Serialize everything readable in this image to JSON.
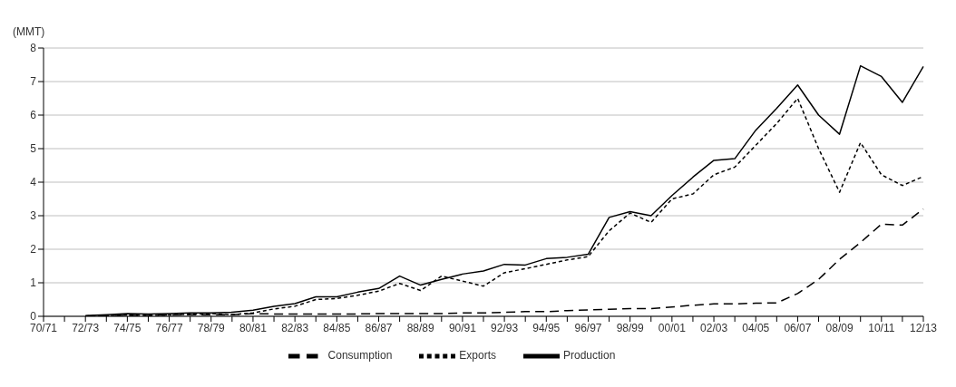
{
  "chart_data": {
    "type": "line",
    "ylabel": "(MMT)",
    "categories": [
      "70/71",
      null,
      "72/73",
      null,
      "74/75",
      null,
      "76/77",
      null,
      "78/79",
      null,
      "80/81",
      null,
      "82/83",
      null,
      "84/85",
      null,
      "86/87",
      null,
      "88/89",
      null,
      "90/91",
      null,
      "92/93",
      null,
      "94/95",
      null,
      "96/97",
      null,
      "98/99",
      null,
      "00/01",
      null,
      "02/03",
      null,
      "04/05",
      null,
      "06/07",
      null,
      "08/09",
      null,
      "10/11",
      null,
      "12/13"
    ],
    "series": [
      {
        "name": "Production",
        "color": "#000000",
        "line_style": "solid",
        "values": [
          null,
          null,
          0.02,
          0.05,
          0.08,
          0.07,
          0.08,
          0.1,
          0.1,
          0.12,
          0.18,
          0.3,
          0.38,
          0.58,
          0.58,
          0.72,
          0.83,
          1.2,
          0.93,
          1.1,
          1.26,
          1.35,
          1.55,
          1.53,
          1.72,
          1.76,
          1.85,
          2.95,
          3.12,
          3.0,
          3.6,
          4.15,
          4.65,
          4.7,
          5.55,
          6.2,
          6.9,
          6.0,
          5.43,
          7.47,
          7.15,
          6.38,
          7.45
        ]
      },
      {
        "name": "Consumption",
        "color": "#000000",
        "line_style": "dashed",
        "values": [
          null,
          null,
          0.01,
          0.02,
          0.03,
          0.03,
          0.04,
          0.05,
          0.05,
          0.05,
          0.08,
          0.07,
          0.07,
          0.07,
          0.07,
          0.07,
          0.08,
          0.08,
          0.08,
          0.08,
          0.1,
          0.1,
          0.12,
          0.14,
          0.14,
          0.17,
          0.19,
          0.21,
          0.23,
          0.23,
          0.28,
          0.33,
          0.37,
          0.37,
          0.39,
          0.4,
          0.68,
          1.1,
          1.7,
          2.2,
          2.75,
          2.72,
          3.2
        ]
      },
      {
        "name": "Exports",
        "color": "#000000",
        "line_style": "dotted",
        "values": [
          null,
          null,
          0.01,
          0.02,
          0.04,
          0.02,
          0.04,
          0.06,
          0.08,
          0.05,
          0.1,
          0.22,
          0.3,
          0.5,
          0.53,
          0.63,
          0.75,
          0.98,
          0.77,
          1.2,
          1.05,
          0.9,
          1.3,
          1.42,
          1.55,
          1.68,
          1.78,
          2.55,
          3.08,
          2.8,
          3.5,
          3.65,
          4.22,
          4.45,
          5.1,
          5.75,
          6.5,
          5.0,
          3.7,
          5.18,
          4.22,
          3.9,
          4.17
        ]
      }
    ],
    "ylim": [
      0,
      8
    ],
    "yticks": [
      0,
      1,
      2,
      3,
      4,
      5,
      6,
      7,
      8
    ],
    "grid": "y",
    "legend": "bottom",
    "marker": "none"
  }
}
